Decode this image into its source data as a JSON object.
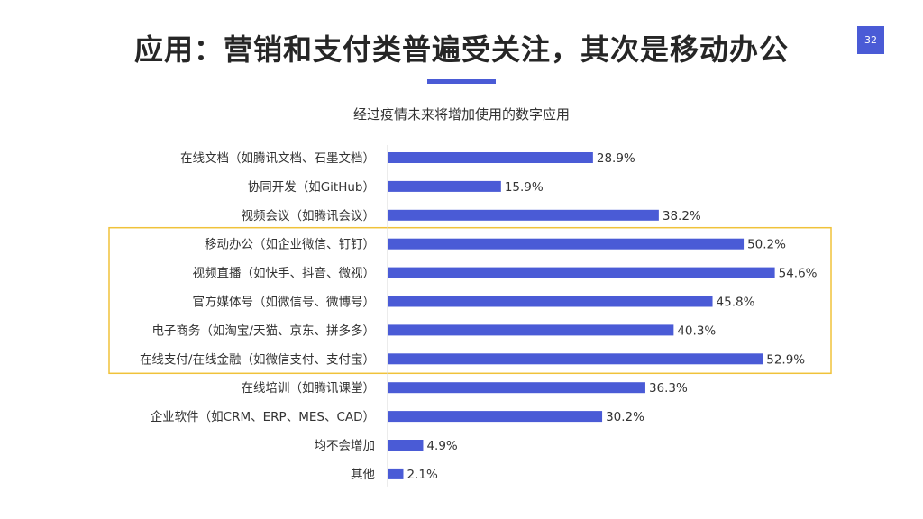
{
  "page": {
    "title": "应用：营销和支付类普遍受关注，其次是移动办公",
    "page_number": "32"
  },
  "colors": {
    "accent": "#4a5bd6",
    "bar": "#4a5bd6",
    "highlight_box": "#f0c23a"
  },
  "chart_data": {
    "type": "bar",
    "orientation": "horizontal",
    "title": "经过疫情未来将增加使用的数字应用",
    "unit": "%",
    "categories": [
      "在线文档（如腾讯文档、石墨文档）",
      "协同开发（如GitHub）",
      "视频会议（如腾讯会议）",
      "移动办公（如企业微信、钉钉）",
      "视频直播（如快手、抖音、微视）",
      "官方媒体号（如微信号、微博号）",
      "电子商务（如淘宝/天猫、京东、拼多多）",
      "在线支付/在线金融（如微信支付、支付宝）",
      "在线培训（如腾讯课堂）",
      "企业软件（如CRM、ERP、MES、CAD）",
      "均不会增加",
      "其他"
    ],
    "values": [
      28.9,
      15.9,
      38.2,
      50.2,
      54.6,
      45.8,
      40.3,
      52.9,
      36.3,
      30.2,
      4.9,
      2.1
    ],
    "value_labels": [
      "28.9%",
      "15.9%",
      "38.2%",
      "50.2%",
      "54.6%",
      "45.8%",
      "40.3%",
      "52.9%",
      "36.3%",
      "30.2%",
      "4.9%",
      "2.1%"
    ],
    "highlighted_categories": [
      "移动办公（如企业微信、钉钉）",
      "视频直播（如快手、抖音、微视）",
      "官方媒体号（如微信号、微博号）",
      "电子商务（如淘宝/天猫、京东、拼多多）",
      "在线支付/在线金融（如微信支付、支付宝）"
    ],
    "grid": false,
    "legend": "none"
  }
}
